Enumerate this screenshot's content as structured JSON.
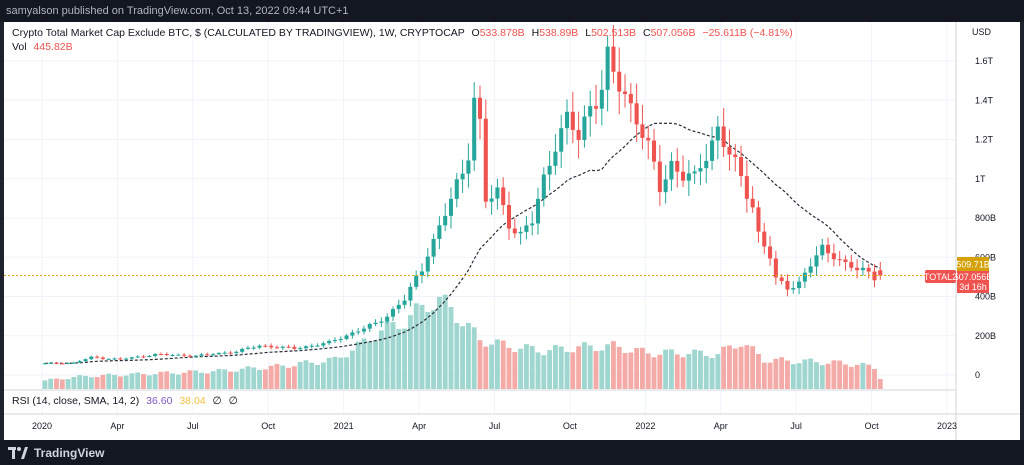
{
  "header": {
    "published": "samyalson published on TradingView.com, Oct 13, 2022 09:44 UTC+1"
  },
  "footer": {
    "brand": "TradingView"
  },
  "legend": {
    "title": "Crypto Total Market Cap Exclude BTC, $ (CALCULATED BY TRADINGVIEW), 1W, CRYPTOCAP",
    "o_label": "O",
    "o_value": "533.878B",
    "h_label": "H",
    "h_value": "538.89B",
    "l_label": "L",
    "l_value": "502.513B",
    "c_label": "C",
    "c_value": "507.056B",
    "change": "−25.611B (−4.81%)",
    "vol_label": "Vol",
    "vol_value": "445.82B"
  },
  "rsi": {
    "label": "RSI (14, close, SMA, 14, 2)",
    "value1": "36.60",
    "value2": "38.04",
    "hide1": "∅",
    "hide2": "∅"
  },
  "price_labels": {
    "tag_high": "509.71B",
    "tag_close": "507.056B",
    "countdown": "3d 16h",
    "symbol": "TOTAL2"
  },
  "colors": {
    "up": "#26a69a",
    "down": "#ef5350",
    "vol_up": "#9fd6cf",
    "vol_down": "#f4aaa7",
    "ma": "#2a2e39",
    "price_line": "#e0a400",
    "rsi_val1": "#7e57c2",
    "rsi_val2": "#f5c242"
  },
  "chart_data": {
    "type": "candlestick",
    "timeframe": "1W",
    "currency": "USD",
    "y_axis": {
      "unit_label": "USD",
      "ticks": [
        {
          "label": "1.6T",
          "value": 1600
        },
        {
          "label": "1.4T",
          "value": 1400
        },
        {
          "label": "1.2T",
          "value": 1200
        },
        {
          "label": "1T",
          "value": 1000
        },
        {
          "label": "800B",
          "value": 800
        },
        {
          "label": "600B",
          "value": 600
        },
        {
          "label": "400B",
          "value": 400
        },
        {
          "label": "200B",
          "value": 200
        },
        {
          "label": "0",
          "value": 0
        }
      ]
    },
    "x_axis": {
      "labels": [
        "2020",
        "Apr",
        "Jul",
        "Oct",
        "2021",
        "Apr",
        "Jul",
        "Oct",
        "2022",
        "Apr",
        "Jul",
        "Oct",
        "2023"
      ],
      "label_weeks": [
        0,
        13,
        26,
        39,
        52,
        65,
        78,
        91,
        104,
        117,
        130,
        143,
        156
      ]
    },
    "price_keyframes": [
      [
        0,
        58
      ],
      [
        6,
        62
      ],
      [
        9,
        90
      ],
      [
        14,
        80
      ],
      [
        20,
        105
      ],
      [
        27,
        98
      ],
      [
        34,
        120
      ],
      [
        38,
        150
      ],
      [
        44,
        135
      ],
      [
        50,
        165
      ],
      [
        54,
        215
      ],
      [
        58,
        260
      ],
      [
        60,
        305
      ],
      [
        63,
        385
      ],
      [
        66,
        540
      ],
      [
        67,
        630
      ],
      [
        69,
        750
      ],
      [
        71,
        890
      ],
      [
        73,
        1030
      ],
      [
        74,
        1150
      ],
      [
        75,
        1430
      ],
      [
        76,
        1270
      ],
      [
        77,
        880
      ],
      [
        79,
        930
      ],
      [
        81,
        780
      ],
      [
        83,
        710
      ],
      [
        85,
        780
      ],
      [
        87,
        1000
      ],
      [
        89,
        1190
      ],
      [
        91,
        1290
      ],
      [
        93,
        1210
      ],
      [
        95,
        1380
      ],
      [
        97,
        1460
      ],
      [
        98,
        1600
      ],
      [
        99,
        1520
      ],
      [
        101,
        1430
      ],
      [
        103,
        1320
      ],
      [
        105,
        1150
      ],
      [
        107,
        950
      ],
      [
        109,
        1080
      ],
      [
        111,
        1020
      ],
      [
        113,
        990
      ],
      [
        115,
        1130
      ],
      [
        117,
        1260
      ],
      [
        119,
        1120
      ],
      [
        121,
        1000
      ],
      [
        123,
        870
      ],
      [
        124,
        720
      ],
      [
        126,
        600
      ],
      [
        127,
        480
      ],
      [
        129,
        450
      ],
      [
        131,
        470
      ],
      [
        133,
        560
      ],
      [
        135,
        640
      ],
      [
        137,
        620
      ],
      [
        139,
        560
      ],
      [
        141,
        535
      ],
      [
        143,
        525
      ],
      [
        144,
        507
      ]
    ],
    "volume_keyframes": [
      [
        0,
        38
      ],
      [
        6,
        55
      ],
      [
        10,
        60
      ],
      [
        20,
        70
      ],
      [
        30,
        80
      ],
      [
        40,
        100
      ],
      [
        50,
        130
      ],
      [
        54,
        190
      ],
      [
        58,
        260
      ],
      [
        62,
        300
      ],
      [
        66,
        380
      ],
      [
        68,
        390
      ],
      [
        70,
        360
      ],
      [
        72,
        300
      ],
      [
        75,
        220
      ],
      [
        80,
        190
      ],
      [
        86,
        170
      ],
      [
        92,
        185
      ],
      [
        98,
        190
      ],
      [
        104,
        160
      ],
      [
        110,
        160
      ],
      [
        116,
        155
      ],
      [
        120,
        210
      ],
      [
        124,
        130
      ],
      [
        128,
        125
      ],
      [
        134,
        120
      ],
      [
        140,
        110
      ],
      [
        143,
        95
      ],
      [
        144,
        50
      ]
    ],
    "last": {
      "open": 533.878,
      "high": 538.89,
      "low": 502.513,
      "close": 507.056,
      "change": -25.611,
      "change_pct": -4.81,
      "volume": 445.82
    },
    "rsi": {
      "period": 14,
      "value": 36.6,
      "ma": 38.04
    }
  }
}
